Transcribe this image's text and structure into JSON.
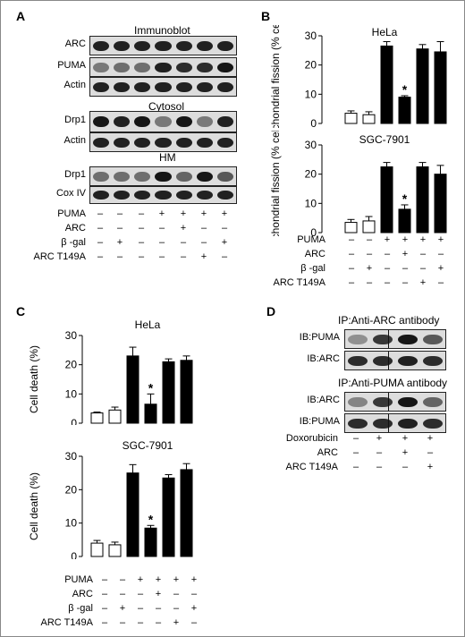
{
  "panels": {
    "A": "A",
    "B": "B",
    "C": "C",
    "D": "D"
  },
  "panelA": {
    "section_immunoblot": "Immunoblot",
    "section_cytosol": "Cytosol",
    "section_hm": "HM",
    "blots": [
      {
        "label": "ARC",
        "bands": [
          0.85,
          0.85,
          0.85,
          0.85,
          0.85,
          0.85,
          0.85
        ]
      },
      {
        "label": "PUMA",
        "bands": [
          0.45,
          0.5,
          0.5,
          0.85,
          0.8,
          0.8,
          0.9
        ]
      },
      {
        "label": "Actin",
        "bands": [
          0.85,
          0.85,
          0.85,
          0.85,
          0.85,
          0.85,
          0.85
        ]
      },
      {
        "label": "Drp1",
        "bands": [
          0.9,
          0.85,
          0.9,
          0.45,
          0.9,
          0.45,
          0.85
        ]
      },
      {
        "label": "Actin",
        "bands": [
          0.85,
          0.85,
          0.85,
          0.85,
          0.85,
          0.85,
          0.85
        ]
      },
      {
        "label": "Drp1",
        "bands": [
          0.5,
          0.5,
          0.5,
          0.9,
          0.55,
          0.9,
          0.6
        ]
      },
      {
        "label": "Cox IV",
        "bands": [
          0.85,
          0.85,
          0.85,
          0.85,
          0.85,
          0.85,
          0.85
        ]
      }
    ],
    "conditions": [
      {
        "label": "PUMA",
        "marks": [
          "–",
          "–",
          "–",
          "+",
          "+",
          "+",
          "+"
        ]
      },
      {
        "label": "ARC",
        "marks": [
          "–",
          "–",
          "–",
          "–",
          "+",
          "–",
          "–"
        ]
      },
      {
        "label": "β -gal",
        "marks": [
          "–",
          "+",
          "–",
          "–",
          "–",
          "–",
          "+"
        ]
      },
      {
        "label": "ARC T149A",
        "marks": [
          "–",
          "–",
          "–",
          "–",
          "–",
          "+",
          "–"
        ]
      }
    ]
  },
  "panelB_conditions": [
    {
      "label": "PUMA",
      "marks": [
        "–",
        "–",
        "+",
        "+",
        "+",
        "+"
      ]
    },
    {
      "label": "ARC",
      "marks": [
        "–",
        "–",
        "–",
        "+",
        "–",
        "–"
      ]
    },
    {
      "label": "β -gal",
      "marks": [
        "–",
        "+",
        "–",
        "–",
        "–",
        "+"
      ]
    },
    {
      "label": "ARC T149A",
      "marks": [
        "–",
        "–",
        "–",
        "–",
        "+",
        "–"
      ]
    }
  ],
  "panelC_conditions": [
    {
      "label": "PUMA",
      "marks": [
        "–",
        "–",
        "+",
        "+",
        "+",
        "+"
      ]
    },
    {
      "label": "ARC",
      "marks": [
        "–",
        "–",
        "–",
        "+",
        "–",
        "–"
      ]
    },
    {
      "label": "β -gal",
      "marks": [
        "–",
        "+",
        "–",
        "–",
        "–",
        "+"
      ]
    },
    {
      "label": "ARC T149A",
      "marks": [
        "–",
        "–",
        "–",
        "–",
        "+",
        "–"
      ]
    }
  ],
  "panelD": {
    "ip1": "IP:Anti-ARC antibody",
    "ip2": "IP:Anti-PUMA antibody",
    "blots": [
      {
        "label": "IB:PUMA",
        "bands": [
          0.35,
          0.75,
          0.9,
          0.6
        ]
      },
      {
        "label": "IB:ARC",
        "bands": [
          0.8,
          0.8,
          0.85,
          0.8
        ]
      },
      {
        "label": "IB:ARC",
        "bands": [
          0.4,
          0.75,
          0.9,
          0.55
        ]
      },
      {
        "label": "IB:PUMA",
        "bands": [
          0.8,
          0.8,
          0.85,
          0.8
        ]
      }
    ],
    "conditions": [
      {
        "label": "Doxorubicin",
        "marks": [
          "–",
          "+",
          "+",
          "+"
        ]
      },
      {
        "label": "ARC",
        "marks": [
          "–",
          "–",
          "+",
          "–"
        ]
      },
      {
        "label": "ARC T149A",
        "marks": [
          "–",
          "–",
          "–",
          "+"
        ]
      }
    ]
  },
  "chart_data": [
    {
      "type": "bar",
      "title": "HeLa",
      "ylabel": "Mitochondrial fission (% cells)",
      "ylim": [
        0,
        30
      ],
      "yticks": [
        0,
        10,
        20,
        30
      ],
      "values": [
        3.5,
        3,
        26.5,
        9,
        25.5,
        24.5
      ],
      "errors": [
        0.8,
        1,
        1.5,
        0.5,
        1.5,
        3.5
      ],
      "fill": [
        "white",
        "white",
        "black",
        "black",
        "black",
        "black"
      ],
      "significant": [
        false,
        false,
        false,
        true,
        false,
        false
      ]
    },
    {
      "type": "bar",
      "title": "SGC-7901",
      "ylabel": "Mitochondrial fission (% cells)",
      "ylim": [
        0,
        30
      ],
      "yticks": [
        0,
        10,
        20,
        30
      ],
      "values": [
        3.5,
        4,
        22.5,
        8,
        22.5,
        20
      ],
      "errors": [
        1,
        1.5,
        1.5,
        1.5,
        1.5,
        3
      ],
      "fill": [
        "white",
        "white",
        "black",
        "black",
        "black",
        "black"
      ],
      "significant": [
        false,
        false,
        false,
        true,
        false,
        false
      ]
    },
    {
      "type": "bar",
      "title": "HeLa",
      "ylabel": "Cell death (%)",
      "ylim": [
        0,
        30
      ],
      "yticks": [
        0,
        10,
        20,
        30
      ],
      "values": [
        3.5,
        4.5,
        23,
        6.5,
        21,
        21.5
      ],
      "errors": [
        0.3,
        1,
        3,
        3.5,
        1,
        1.5
      ],
      "fill": [
        "white",
        "white",
        "black",
        "black",
        "black",
        "black"
      ],
      "significant": [
        false,
        false,
        false,
        true,
        false,
        false
      ]
    },
    {
      "type": "bar",
      "title": "SGC-7901",
      "ylabel": "Cell death (%)",
      "ylim": [
        0,
        30
      ],
      "yticks": [
        0,
        10,
        20,
        30
      ],
      "values": [
        4,
        3.5,
        25,
        8.5,
        23.5,
        26
      ],
      "errors": [
        0.8,
        0.8,
        2.5,
        0.8,
        1,
        1.8
      ],
      "fill": [
        "white",
        "white",
        "black",
        "black",
        "black",
        "black"
      ],
      "significant": [
        false,
        false,
        false,
        true,
        false,
        false
      ]
    }
  ],
  "star": "*"
}
